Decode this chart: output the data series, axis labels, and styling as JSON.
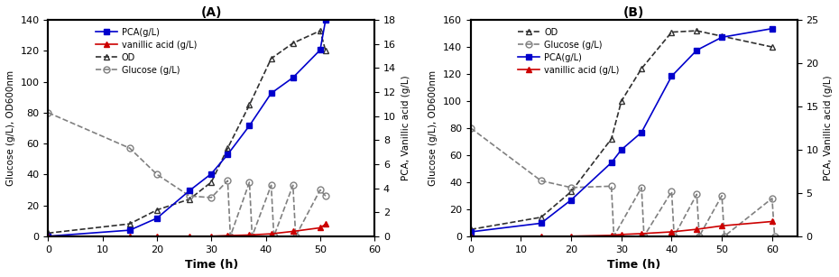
{
  "A": {
    "title": "(A)",
    "xlabel": "Time (h)",
    "ylabel_left": "Glucose (g/L), OD600nm",
    "ylabel_right": "PCA, Vanillic acid (g/L)",
    "xlim": [
      0,
      60
    ],
    "ylim_left": [
      0,
      140
    ],
    "ylim_right": [
      0,
      18
    ],
    "xticks": [
      0,
      10,
      20,
      30,
      40,
      50,
      60
    ],
    "yticks_left": [
      0,
      20,
      40,
      60,
      80,
      100,
      120,
      140
    ],
    "yticks_right": [
      0,
      2,
      4,
      6,
      8,
      10,
      12,
      14,
      16,
      18
    ],
    "PCA": {
      "x": [
        0,
        15,
        20,
        26,
        30,
        33,
        37,
        41,
        45,
        50,
        51
      ],
      "y": [
        0,
        0.5,
        1.5,
        3.8,
        5.2,
        6.8,
        9.2,
        11.9,
        13.2,
        15.5,
        18.0
      ],
      "color": "#0000cc",
      "marker": "s",
      "linestyle": "-",
      "label": "PCA(g/L)"
    },
    "vanillic": {
      "x": [
        0,
        15,
        20,
        26,
        30,
        33,
        37,
        41,
        45,
        50,
        51
      ],
      "y": [
        0,
        0,
        0,
        0,
        0,
        0.05,
        0.1,
        0.2,
        0.4,
        0.7,
        1.0
      ],
      "color": "#cc0000",
      "marker": "^",
      "linestyle": "-",
      "label": "vanillic acid (g/L)"
    },
    "OD": {
      "x": [
        0,
        15,
        20,
        26,
        30,
        33,
        37,
        41,
        45,
        50,
        51
      ],
      "y": [
        2,
        8,
        17,
        24,
        35,
        57,
        85,
        115,
        125,
        133,
        120
      ],
      "color": "#303030",
      "marker": "^",
      "linestyle": "--",
      "label": "OD"
    },
    "glucose": {
      "x": [
        0,
        15,
        20,
        26,
        30,
        33,
        33.5,
        37,
        37.5,
        41,
        41.5,
        45,
        45.5,
        50,
        51
      ],
      "y": [
        80,
        57,
        40,
        26,
        25,
        36,
        0,
        35,
        0,
        33,
        0,
        33,
        0,
        30,
        26
      ],
      "color": "#808080",
      "marker": "o",
      "linestyle": "--",
      "label": "Glucose (g/L)"
    }
  },
  "B": {
    "title": "(B)",
    "xlabel": "Time (h)",
    "ylabel_left": "Glucose (g/L), OD600nm",
    "ylabel_right": "PCA, Vanillic acid (g/L)",
    "xlim": [
      0,
      65
    ],
    "ylim_left": [
      0,
      160
    ],
    "ylim_right": [
      0,
      25
    ],
    "xticks": [
      0,
      10,
      20,
      30,
      40,
      50,
      60
    ],
    "yticks_left": [
      0,
      20,
      40,
      60,
      80,
      100,
      120,
      140,
      160
    ],
    "yticks_right": [
      0,
      5,
      10,
      15,
      20,
      25
    ],
    "PCA": {
      "x": [
        0,
        14,
        20,
        28,
        30,
        34,
        40,
        45,
        50,
        60
      ],
      "y": [
        0.5,
        1.5,
        4.2,
        8.5,
        10.0,
        12.0,
        18.5,
        21.5,
        23.0,
        24.0
      ],
      "color": "#0000cc",
      "marker": "s",
      "linestyle": "-",
      "label": "PCA(g/L)"
    },
    "vanillic": {
      "x": [
        0,
        14,
        20,
        28,
        30,
        34,
        40,
        45,
        50,
        60
      ],
      "y": [
        0,
        0,
        0,
        0.1,
        0.2,
        0.3,
        0.5,
        0.8,
        1.2,
        1.7
      ],
      "color": "#cc0000",
      "marker": "^",
      "linestyle": "-",
      "label": "vanillic acid (g/L)"
    },
    "OD": {
      "x": [
        0,
        14,
        20,
        28,
        30,
        34,
        40,
        45,
        50,
        60
      ],
      "y": [
        5,
        14,
        33,
        72,
        100,
        124,
        151,
        152,
        148,
        140
      ],
      "color": "#303030",
      "marker": "^",
      "linestyle": "--",
      "label": "OD"
    },
    "glucose": {
      "x": [
        0,
        14,
        20,
        28,
        28.5,
        34,
        34.5,
        40,
        40.5,
        45,
        45.5,
        50,
        50.5,
        60,
        60.5
      ],
      "y": [
        80,
        41,
        36,
        37,
        0,
        36,
        0,
        33,
        0,
        31,
        0,
        30,
        0,
        28,
        0
      ],
      "color": "#808080",
      "marker": "o",
      "linestyle": "--",
      "label": "Glucose (g/L)"
    }
  }
}
